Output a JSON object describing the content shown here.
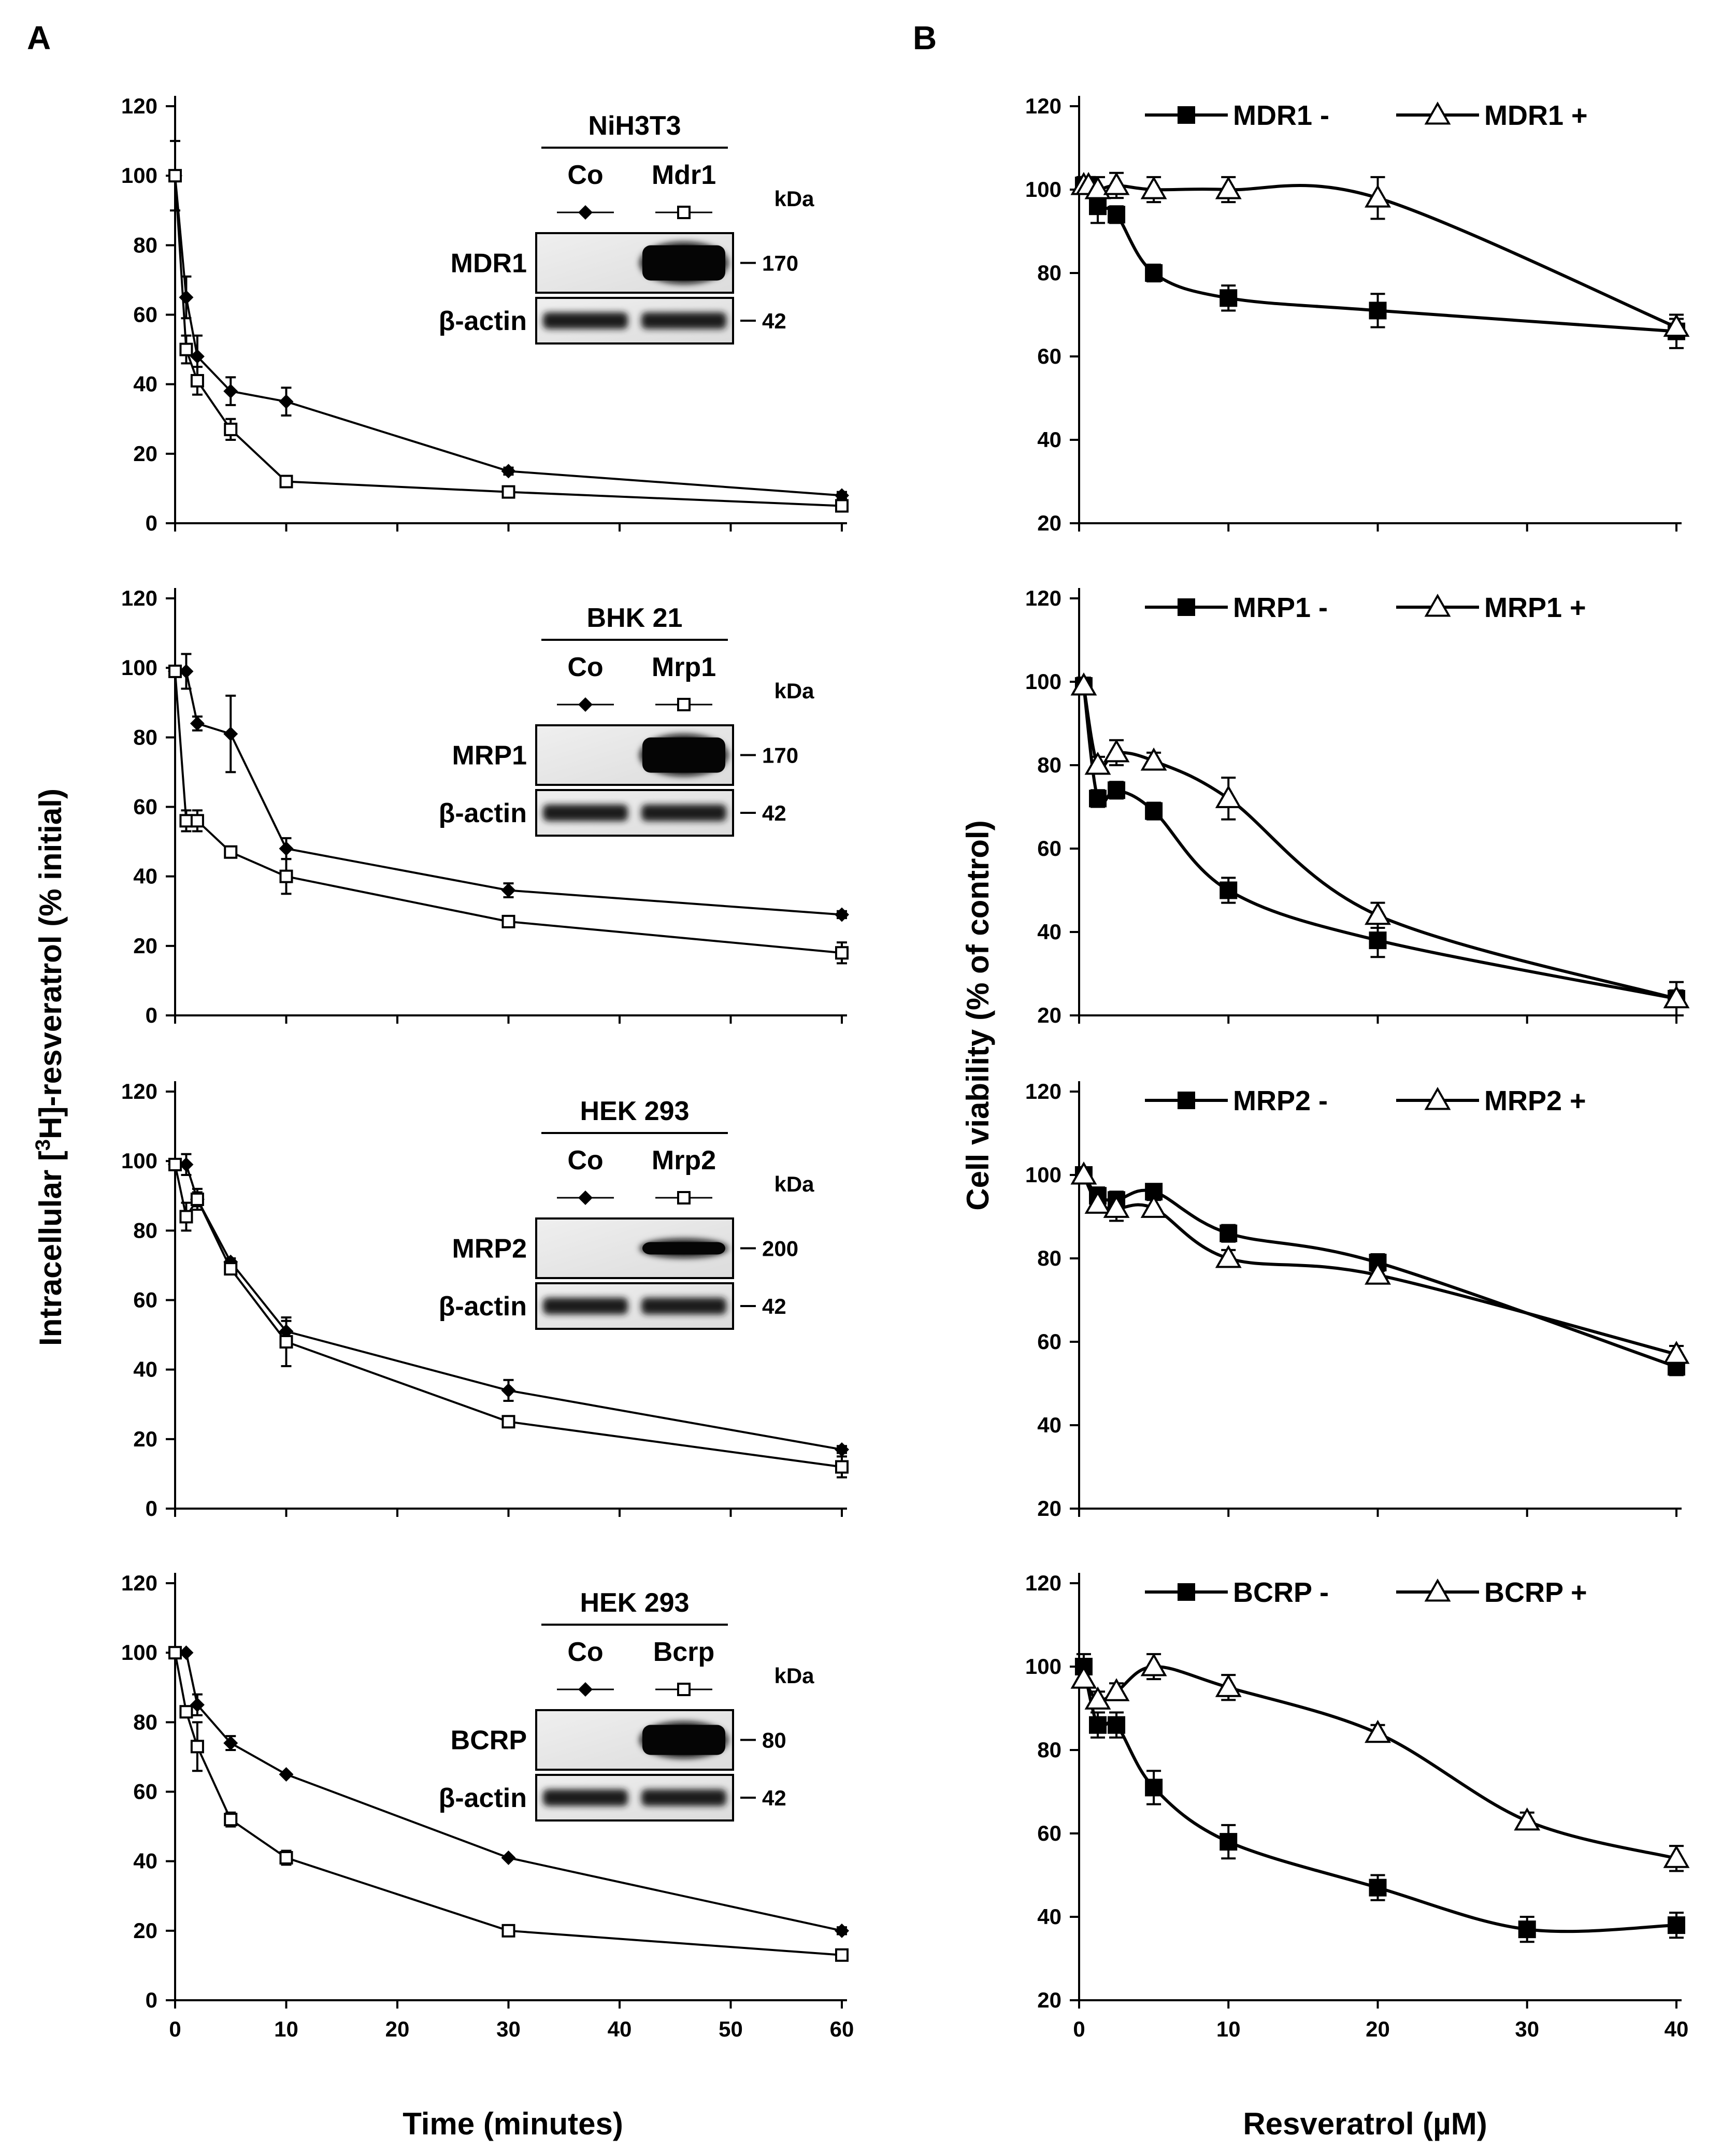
{
  "figure": {
    "panel_labels": [
      "A",
      "B"
    ],
    "left_ylabel_prefix": "Intracellular [",
    "left_ylabel_sup": "3",
    "left_ylabel_suffix": "H]-resveratrol (% initial)",
    "left_xlabel": "Time  (minutes)",
    "right_ylabel": "Cell viability (% of control)",
    "right_xlabel": "Resveratrol  (µM)"
  },
  "blot_common": {
    "kda_label": "kDa",
    "actin_label": "β-actin",
    "actin_kda": "42",
    "control_lane": "Co"
  },
  "chart_data": [
    {
      "type": "line",
      "panel": "A",
      "row": 0,
      "title": "",
      "xlabel": "",
      "ylabel": "",
      "xlim": [
        0,
        60
      ],
      "ylim": [
        0,
        120
      ],
      "xticks": [],
      "yticks": [
        0,
        20,
        40,
        60,
        80,
        100,
        120
      ],
      "x": [
        0,
        1,
        2,
        5,
        10,
        30,
        60
      ],
      "series": [
        {
          "name": "Co",
          "marker": "diamond-filled",
          "values": [
            100,
            65,
            48,
            38,
            35,
            15,
            8
          ],
          "err": [
            10,
            6,
            6,
            4,
            4,
            1,
            1
          ]
        },
        {
          "name": "Mdr1",
          "marker": "square-open",
          "values": [
            100,
            50,
            41,
            27,
            12,
            9,
            5
          ],
          "err": [
            0,
            4,
            4,
            3,
            1,
            1,
            1
          ]
        }
      ],
      "blot": {
        "cell_line": "NiH3T3",
        "transporter_lane": "Mdr1",
        "protein": "MDR1",
        "protein_kda": "170"
      }
    },
    {
      "type": "line",
      "panel": "A",
      "row": 1,
      "title": "",
      "xlabel": "",
      "ylabel": "",
      "xlim": [
        0,
        60
      ],
      "ylim": [
        0,
        120
      ],
      "xticks": [],
      "yticks": [
        0,
        20,
        40,
        60,
        80,
        100,
        120
      ],
      "x": [
        0,
        1,
        2,
        5,
        10,
        30,
        60
      ],
      "series": [
        {
          "name": "Co",
          "marker": "diamond-filled",
          "values": [
            99,
            99,
            84,
            81,
            48,
            36,
            29
          ],
          "err": [
            0,
            5,
            2,
            11,
            3,
            2,
            1
          ]
        },
        {
          "name": "Mrp1",
          "marker": "square-open",
          "values": [
            99,
            56,
            56,
            47,
            40,
            27,
            18
          ],
          "err": [
            0,
            3,
            3,
            1,
            5,
            1,
            3
          ]
        }
      ],
      "blot": {
        "cell_line": "BHK 21",
        "transporter_lane": "Mrp1",
        "protein": "MRP1",
        "protein_kda": "170"
      }
    },
    {
      "type": "line",
      "panel": "A",
      "row": 2,
      "title": "",
      "xlabel": "",
      "ylabel": "",
      "xlim": [
        0,
        60
      ],
      "ylim": [
        0,
        120
      ],
      "xticks": [],
      "yticks": [
        0,
        20,
        40,
        60,
        80,
        100,
        120
      ],
      "x": [
        0,
        1,
        2,
        5,
        10,
        30,
        60
      ],
      "series": [
        {
          "name": "Co",
          "marker": "diamond-filled",
          "values": [
            99,
            99,
            89,
            71,
            51,
            34,
            17
          ],
          "err": [
            0,
            3,
            3,
            1,
            3,
            3,
            1
          ]
        },
        {
          "name": "Mrp2",
          "marker": "square-open",
          "values": [
            99,
            84,
            89,
            69,
            48,
            25,
            12
          ],
          "err": [
            0,
            4,
            2,
            1,
            7,
            1,
            3
          ]
        }
      ],
      "blot": {
        "cell_line": "HEK 293",
        "transporter_lane": "Mrp2",
        "protein": "MRP2",
        "protein_kda": "200"
      }
    },
    {
      "type": "line",
      "panel": "A",
      "row": 3,
      "title": "",
      "xlabel": "Time  (minutes)",
      "ylabel": "",
      "xlim": [
        0,
        60
      ],
      "ylim": [
        0,
        120
      ],
      "xticks": [
        0,
        10,
        20,
        30,
        40,
        50,
        60
      ],
      "yticks": [
        0,
        20,
        40,
        60,
        80,
        100,
        120
      ],
      "x": [
        0,
        1,
        2,
        5,
        10,
        30,
        60
      ],
      "series": [
        {
          "name": "Co",
          "marker": "diamond-filled",
          "values": [
            100,
            100,
            85,
            74,
            65,
            41,
            20
          ],
          "err": [
            0,
            0,
            3,
            2,
            0,
            0,
            1
          ]
        },
        {
          "name": "Bcrp",
          "marker": "square-open",
          "values": [
            100,
            83,
            73,
            52,
            41,
            20,
            13
          ],
          "err": [
            0,
            1,
            7,
            2,
            2,
            0,
            1
          ]
        }
      ],
      "blot": {
        "cell_line": "HEK 293",
        "transporter_lane": "Bcrp",
        "protein": "BCRP",
        "protein_kda": "80"
      }
    },
    {
      "type": "line",
      "panel": "B",
      "row": 0,
      "title": "",
      "xlabel": "",
      "ylabel": "",
      "xlim": [
        0,
        40
      ],
      "ylim": [
        20,
        120
      ],
      "xticks": [],
      "yticks": [
        20,
        40,
        60,
        80,
        100,
        120
      ],
      "series": [
        {
          "name": "MDR1 -",
          "marker": "square-filled",
          "x": [
            0.31,
            0.63,
            1.25,
            2.5,
            5,
            10,
            20,
            40
          ],
          "values": [
            101,
            101,
            96,
            94,
            80,
            74,
            71,
            66
          ],
          "err": [
            2,
            2,
            4,
            2,
            2,
            3,
            4,
            4
          ]
        },
        {
          "name": "MDR1 +",
          "marker": "triangle-open",
          "x": [
            0.31,
            0.63,
            1.25,
            2.5,
            5,
            10,
            20,
            40
          ],
          "values": [
            101,
            101,
            100,
            101,
            100,
            100,
            98,
            67
          ],
          "err": [
            2,
            2,
            3,
            3,
            3,
            3,
            5,
            2
          ]
        }
      ]
    },
    {
      "type": "line",
      "panel": "B",
      "row": 1,
      "title": "",
      "xlabel": "",
      "ylabel": "",
      "xlim": [
        0,
        40
      ],
      "ylim": [
        20,
        120
      ],
      "xticks": [],
      "yticks": [
        20,
        40,
        60,
        80,
        100,
        120
      ],
      "series": [
        {
          "name": "MRP1 -",
          "marker": "square-filled",
          "x": [
            0.31,
            1.25,
            2.5,
            5,
            10,
            20,
            40
          ],
          "values": [
            99,
            72,
            74,
            69,
            50,
            38,
            24
          ],
          "err": [
            2,
            2,
            2,
            2,
            3,
            4,
            2
          ]
        },
        {
          "name": "MRP1 +",
          "marker": "triangle-open",
          "x": [
            0.31,
            1.25,
            2.5,
            5,
            10,
            20,
            40
          ],
          "values": [
            99,
            80,
            83,
            81,
            72,
            44,
            24
          ],
          "err": [
            2,
            2,
            3,
            2,
            5,
            3,
            4
          ]
        }
      ]
    },
    {
      "type": "line",
      "panel": "B",
      "row": 2,
      "title": "",
      "xlabel": "",
      "ylabel": "",
      "xlim": [
        0,
        40
      ],
      "ylim": [
        20,
        120
      ],
      "xticks": [],
      "yticks": [
        20,
        40,
        60,
        80,
        100,
        120
      ],
      "series": [
        {
          "name": "MRP2 -",
          "marker": "square-filled",
          "x": [
            0.31,
            1.25,
            2.5,
            5,
            10,
            20,
            40
          ],
          "values": [
            100,
            95,
            94,
            96,
            86,
            79,
            54
          ],
          "err": [
            1,
            2,
            2,
            1,
            2,
            2,
            2
          ]
        },
        {
          "name": "MRP2 +",
          "marker": "triangle-open",
          "x": [
            0.31,
            1.25,
            2.5,
            5,
            10,
            20,
            40
          ],
          "values": [
            100,
            93,
            92,
            92,
            80,
            76,
            57
          ],
          "err": [
            1,
            2,
            3,
            2,
            2,
            2,
            2
          ]
        }
      ]
    },
    {
      "type": "line",
      "panel": "B",
      "row": 3,
      "title": "",
      "xlabel": "Resveratrol  (µM)",
      "ylabel": "",
      "xlim": [
        0,
        40
      ],
      "ylim": [
        20,
        120
      ],
      "xticks": [
        0,
        10,
        20,
        30,
        40
      ],
      "yticks": [
        20,
        40,
        60,
        80,
        100,
        120
      ],
      "series": [
        {
          "name": "BCRP -",
          "marker": "square-filled",
          "x": [
            0.31,
            1.25,
            2.5,
            5,
            10,
            20,
            30,
            40
          ],
          "values": [
            100,
            86,
            86,
            71,
            58,
            47,
            37,
            38
          ],
          "err": [
            3,
            3,
            3,
            4,
            4,
            3,
            3,
            3
          ]
        },
        {
          "name": "BCRP +",
          "marker": "triangle-open",
          "x": [
            0.31,
            1.25,
            2.5,
            5,
            10,
            20,
            30,
            40
          ],
          "values": [
            97,
            92,
            94,
            100,
            95,
            84,
            63,
            54
          ],
          "err": [
            2,
            2,
            2,
            3,
            3,
            2,
            2,
            3
          ]
        }
      ]
    }
  ]
}
